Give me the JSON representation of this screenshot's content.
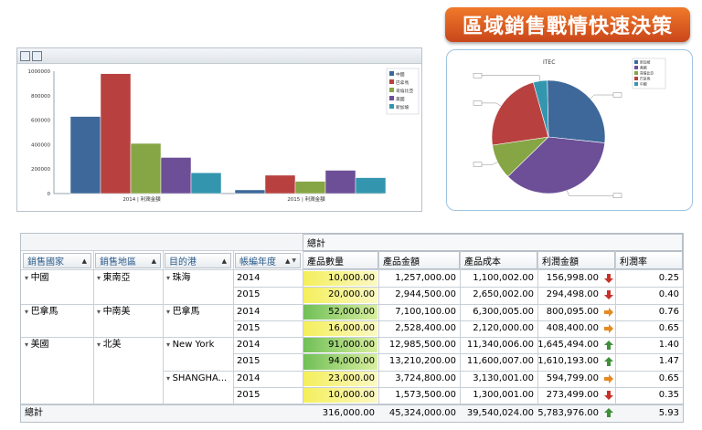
{
  "banner": {
    "title": "區域銷售戰情快速決策"
  },
  "chart_data": [
    {
      "type": "bar",
      "categories": [
        "2014 | 利潤金額",
        "2015 | 利潤金額"
      ],
      "series": [
        {
          "name": "中國",
          "color": "#3d6899",
          "values": [
            630000,
            30000
          ]
        },
        {
          "name": "巴拿馬",
          "color": "#b8413f",
          "values": [
            980000,
            150000
          ]
        },
        {
          "name": "哥倫比亞",
          "color": "#86a544",
          "values": [
            410000,
            100000
          ]
        },
        {
          "name": "美國",
          "color": "#6c4f97",
          "values": [
            295000,
            190000
          ]
        },
        {
          "name": "新加坡",
          "color": "#3496ae",
          "values": [
            170000,
            130000
          ]
        }
      ],
      "ylim": [
        0,
        1000000
      ],
      "yticks": [
        "0",
        "200000",
        "400000",
        "600000",
        "800000",
        "1000000"
      ],
      "legend": "right"
    },
    {
      "type": "pie",
      "title": "ITEC",
      "slices": [
        {
          "name": "新加坡",
          "color": "#3d6899",
          "value": 27
        },
        {
          "name": "美國",
          "color": "#6c4f97",
          "value": 36
        },
        {
          "name": "哥倫比亞",
          "color": "#86a544",
          "value": 10
        },
        {
          "name": "巴拿馬",
          "color": "#b8413f",
          "value": 23
        },
        {
          "name": "中國",
          "color": "#3496ae",
          "value": 4
        }
      ],
      "legend": "right"
    }
  ],
  "grid": {
    "group_header": "總計",
    "row_headers": [
      "銷售國家",
      "銷售地區",
      "目的港",
      "帳編年度"
    ],
    "col_headers": [
      "產品數量",
      "產品金額",
      "產品成本",
      "利潤金額",
      "利潤率"
    ],
    "rows": [
      {
        "country": "中國",
        "region": "東南亞",
        "port": "珠海",
        "year": "2014",
        "qty": "10,000.00",
        "amount": "1,257,000.00",
        "cost": "1,100,002.00",
        "profit": "156,998.00",
        "trend": "down",
        "rate": "0.25"
      },
      {
        "country": "",
        "region": "",
        "port": "",
        "year": "2015",
        "qty": "20,000.00",
        "amount": "2,944,500.00",
        "cost": "2,650,002.00",
        "profit": "294,498.00",
        "trend": "down",
        "rate": "0.40"
      },
      {
        "country": "巴拿馬",
        "region": "中南美",
        "port": "巴拿馬",
        "year": "2014",
        "qty": "52,000.00",
        "amount": "7,100,100.00",
        "cost": "6,300,005.00",
        "profit": "800,095.00",
        "trend": "right",
        "rate": "0.76"
      },
      {
        "country": "",
        "region": "",
        "port": "",
        "year": "2015",
        "qty": "16,000.00",
        "amount": "2,528,400.00",
        "cost": "2,120,000.00",
        "profit": "408,400.00",
        "trend": "right",
        "rate": "0.65"
      },
      {
        "country": "美國",
        "region": "北美",
        "port": "New York",
        "year": "2014",
        "qty": "91,000.00",
        "amount": "12,985,500.00",
        "cost": "11,340,006.00",
        "profit": "1,645,494.00",
        "trend": "up",
        "rate": "1.40"
      },
      {
        "country": "",
        "region": "",
        "port": "",
        "year": "2015",
        "qty": "94,000.00",
        "amount": "13,210,200.00",
        "cost": "11,600,007.00",
        "profit": "1,610,193.00",
        "trend": "up",
        "rate": "1.47"
      },
      {
        "country": "",
        "region": "",
        "port": "SHANGHA...",
        "year": "2014",
        "qty": "23,000.00",
        "amount": "3,724,800.00",
        "cost": "3,130,001.00",
        "profit": "594,799.00",
        "trend": "right",
        "rate": "0.65"
      },
      {
        "country": "",
        "region": "",
        "port": "",
        "year": "2015",
        "qty": "10,000.00",
        "amount": "1,573,500.00",
        "cost": "1,300,001.00",
        "profit": "273,499.00",
        "trend": "down",
        "rate": "0.35"
      }
    ],
    "total": {
      "label": "總計",
      "qty": "316,000.00",
      "amount": "45,324,000.00",
      "cost": "39,540,024.00",
      "profit": "5,783,976.00",
      "trend": "up",
      "rate": "5.93"
    }
  }
}
